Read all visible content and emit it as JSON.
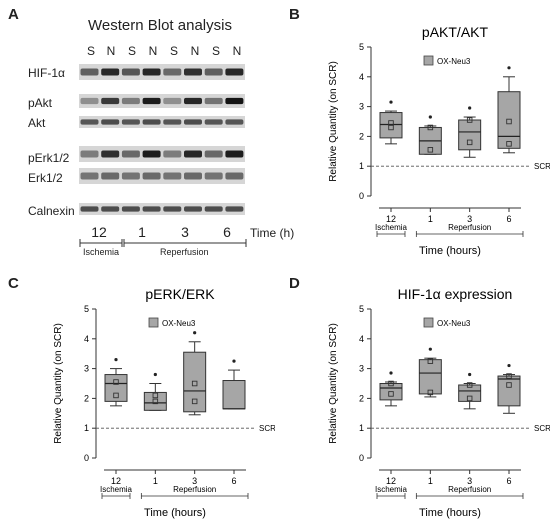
{
  "panel_a": {
    "letter": "A",
    "title": "Western Blot analysis",
    "lanes": [
      "S",
      "N",
      "S",
      "N",
      "S",
      "N",
      "S",
      "N"
    ],
    "rows": [
      "HIF-1α",
      "pAkt",
      "Akt",
      "pErk1/2",
      "Erk1/2",
      "Calnexin"
    ],
    "timepoints": [
      "12",
      "1",
      "3",
      "6"
    ],
    "time_unit": "Time (h)",
    "groups": [
      "Ischemia",
      "Reperfusion"
    ]
  },
  "chart_data": [
    {
      "letter": "B",
      "type": "box",
      "title": "pAKT/AKT",
      "ylabel": "Relative Quantity (on SCR)",
      "xlabel": "Time (hours)",
      "legend": "OX-Neu3",
      "legend_color": "#a6a6a6",
      "ref_label": "SCR",
      "ref_value": 1,
      "ylim": [
        0,
        5
      ],
      "yticks": [
        0,
        1,
        2,
        3,
        4,
        5
      ],
      "categories": [
        "12",
        "1",
        "3",
        "6"
      ],
      "groups": [
        {
          "label": "Ischemia",
          "span": [
            0,
            0
          ]
        },
        {
          "label": "Reperfusion",
          "span": [
            1,
            3
          ]
        }
      ],
      "boxes": [
        {
          "min": 1.75,
          "q1": 1.95,
          "median": 2.4,
          "q3": 2.8,
          "max": 2.85,
          "points": [
            2.45,
            2.3
          ],
          "star": true
        },
        {
          "min": 1.4,
          "q1": 1.4,
          "median": 1.85,
          "q3": 2.3,
          "max": 2.35,
          "points": [
            1.55,
            2.3
          ],
          "star": true
        },
        {
          "min": 1.3,
          "q1": 1.55,
          "median": 2.15,
          "q3": 2.55,
          "max": 2.65,
          "points": [
            2.55,
            1.8
          ],
          "star": true
        },
        {
          "min": 1.45,
          "q1": 1.6,
          "median": 2.0,
          "q3": 3.5,
          "max": 4.0,
          "points": [
            2.5,
            1.75
          ],
          "star": true
        }
      ]
    },
    {
      "letter": "C",
      "type": "box",
      "title": "pERK/ERK",
      "ylabel": "Relative Quantity (on SCR)",
      "xlabel": "Time (hours)",
      "legend": "OX-Neu3",
      "legend_color": "#a6a6a6",
      "ref_label": "SCR",
      "ref_value": 1,
      "ylim": [
        0,
        5
      ],
      "yticks": [
        0,
        1,
        2,
        3,
        4,
        5
      ],
      "categories": [
        "12",
        "1",
        "3",
        "6"
      ],
      "groups": [
        {
          "label": "Ischemia",
          "span": [
            0,
            0
          ]
        },
        {
          "label": "Reperfusion",
          "span": [
            1,
            3
          ]
        }
      ],
      "boxes": [
        {
          "min": 1.75,
          "q1": 1.9,
          "median": 2.5,
          "q3": 2.8,
          "max": 3.0,
          "points": [
            2.55,
            2.1
          ],
          "star": true
        },
        {
          "min": 1.6,
          "q1": 1.6,
          "median": 1.85,
          "q3": 2.2,
          "max": 2.5,
          "points": [
            1.9,
            2.1
          ],
          "star": true
        },
        {
          "min": 1.45,
          "q1": 1.55,
          "median": 2.25,
          "q3": 3.55,
          "max": 3.9,
          "points": [
            2.5,
            1.9
          ],
          "star": true
        },
        {
          "min": 1.65,
          "q1": 1.65,
          "median": 1.65,
          "q3": 2.6,
          "max": 2.95,
          "points": [],
          "star": true
        }
      ]
    },
    {
      "letter": "D",
      "type": "box",
      "title": "HIF-1α expression",
      "ylabel": "Relative Quantity (on SCR)",
      "xlabel": "Time (hours)",
      "legend": "OX-Neu3",
      "legend_color": "#a6a6a6",
      "ref_label": "SCR",
      "ref_value": 1,
      "ylim": [
        0,
        5
      ],
      "yticks": [
        0,
        1,
        2,
        3,
        4,
        5
      ],
      "categories": [
        "12",
        "1",
        "3",
        "6"
      ],
      "groups": [
        {
          "label": "Ischemia",
          "span": [
            0,
            0
          ]
        },
        {
          "label": "Reperfusion",
          "span": [
            1,
            3
          ]
        }
      ],
      "boxes": [
        {
          "min": 1.75,
          "q1": 1.95,
          "median": 2.35,
          "q3": 2.5,
          "max": 2.55,
          "points": [
            2.5,
            2.15
          ],
          "star": true
        },
        {
          "min": 2.05,
          "q1": 2.15,
          "median": 2.85,
          "q3": 3.3,
          "max": 3.35,
          "points": [
            3.25,
            2.2
          ],
          "star": true
        },
        {
          "min": 1.65,
          "q1": 1.9,
          "median": 2.25,
          "q3": 2.45,
          "max": 2.5,
          "points": [
            2.45,
            2.0
          ],
          "star": true
        },
        {
          "min": 1.5,
          "q1": 1.75,
          "median": 2.65,
          "q3": 2.75,
          "max": 2.8,
          "points": [
            2.75,
            2.45
          ],
          "star": true
        }
      ]
    }
  ]
}
